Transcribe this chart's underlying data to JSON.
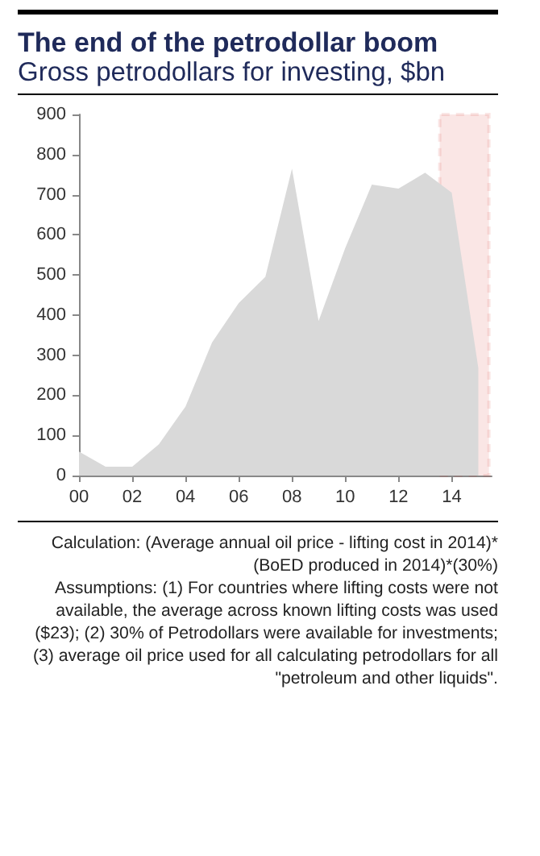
{
  "chart_data": {
    "type": "area",
    "title": "The end of the petrodollar boom",
    "subtitle": "Gross petrodollars for investing, $bn",
    "x": [
      0,
      1,
      2,
      3,
      4,
      5,
      6,
      7,
      8,
      9,
      10,
      11,
      12,
      13,
      14,
      15
    ],
    "values": [
      60,
      22,
      22,
      78,
      172,
      332,
      430,
      495,
      765,
      385,
      567,
      725,
      715,
      755,
      705,
      268
    ],
    "color": "#d9d9d9",
    "xlim": [
      0,
      15.5
    ],
    "xticks": [
      {
        "value": 0,
        "label": "00"
      },
      {
        "value": 2,
        "label": "02"
      },
      {
        "value": 4,
        "label": "04"
      },
      {
        "value": 6,
        "label": "06"
      },
      {
        "value": 8,
        "label": "08"
      },
      {
        "value": 10,
        "label": "10"
      },
      {
        "value": 12,
        "label": "12"
      },
      {
        "value": 14,
        "label": "14"
      }
    ],
    "ylim": [
      0,
      900
    ],
    "yticks": [
      0,
      100,
      200,
      300,
      400,
      500,
      600,
      700,
      800,
      900
    ],
    "bands": [
      {
        "axis": "x",
        "from": 13.55,
        "to": 15.4,
        "color": "#d9302c"
      }
    ],
    "annotations": [
      "Calculation: (Average annual oil price - lifting cost in 2014)*(BoED produced in 2014)*(30%)",
      "Assumptions:  (1) For countries where lifting costs were not available, the average across known lifting costs was used ($23); (2) 30% of Petrodollars were available for investments; (3) average oil price used for all calculating petrodollars for all \"petroleum and other liquids\"."
    ]
  }
}
